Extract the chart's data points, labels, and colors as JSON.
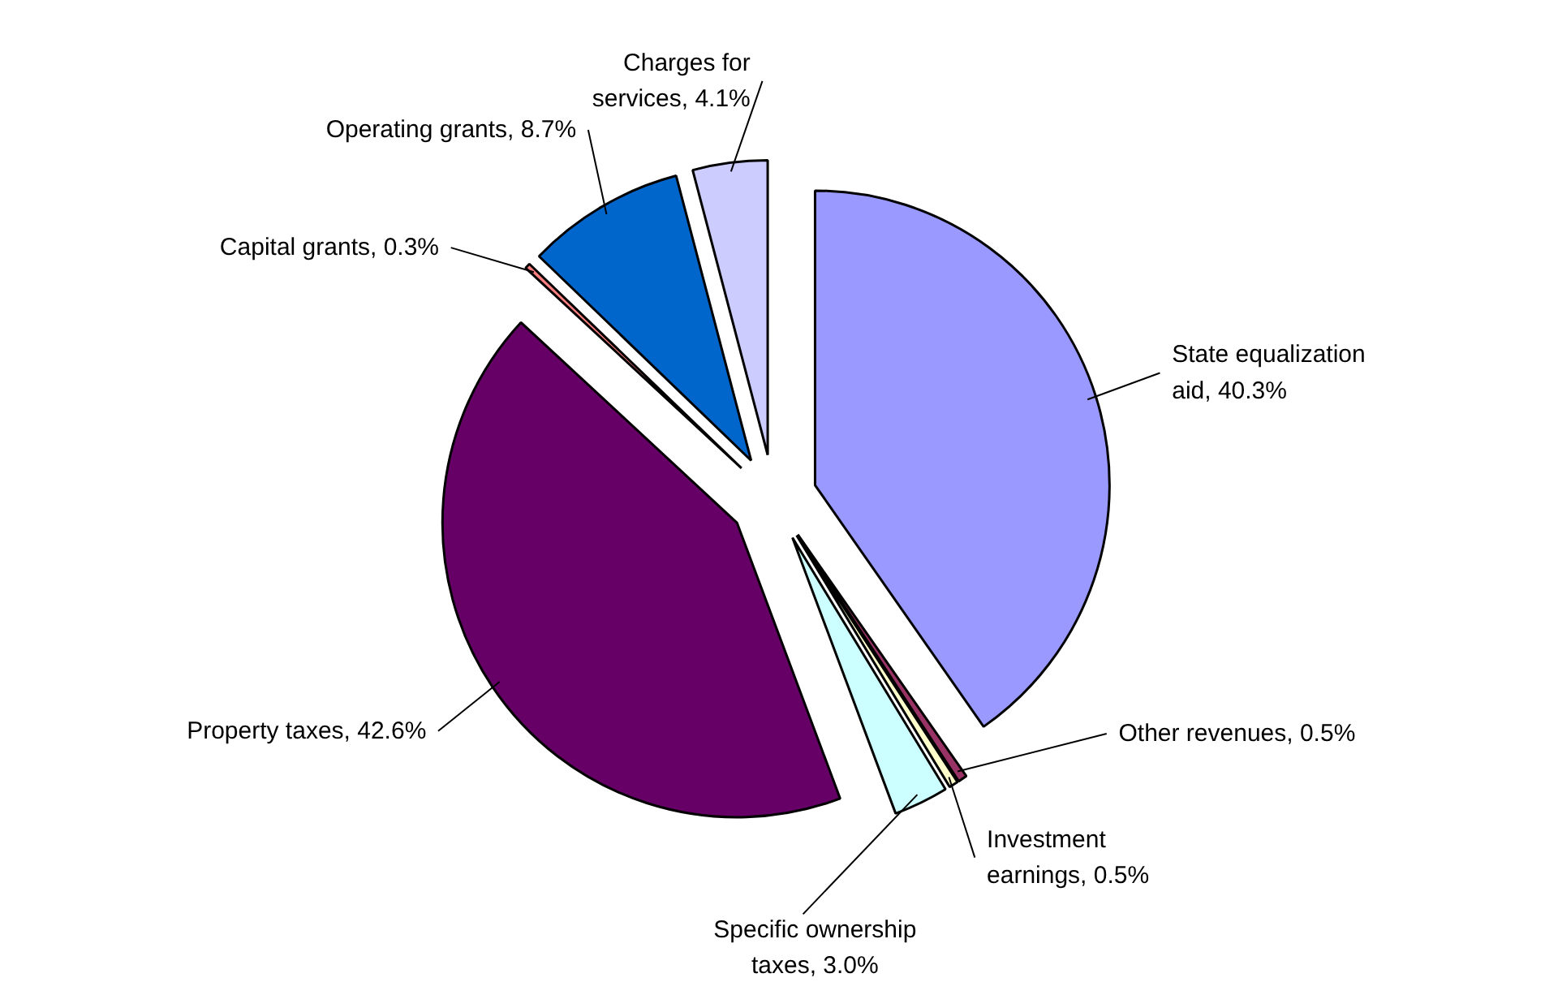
{
  "chart_data": {
    "type": "pie",
    "categories": [
      "State equalization aid",
      "Other revenues",
      "Investment earnings",
      "Specific ownership taxes",
      "Property taxes",
      "Capital grants",
      "Operating grants",
      "Charges for services"
    ],
    "values": [
      40.3,
      0.5,
      0.5,
      3.0,
      42.6,
      0.3,
      8.7,
      4.1
    ],
    "value_labels": [
      "40.3%",
      "0.5%",
      "0.5%",
      "3.0%",
      "42.6%",
      "0.3%",
      "8.7%",
      "4.1%"
    ],
    "colors": [
      "#9999ff",
      "#993366",
      "#ffffcc",
      "#ccffff",
      "#660066",
      "#ff8080",
      "#0066cc",
      "#ccccff"
    ]
  }
}
